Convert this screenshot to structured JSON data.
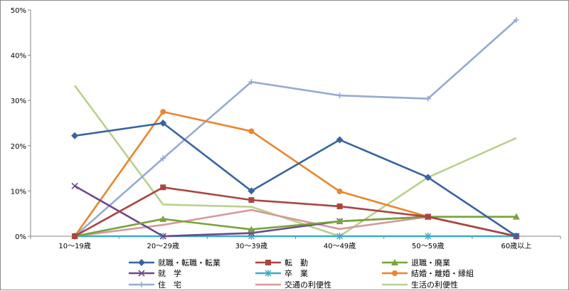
{
  "chart_data": {
    "type": "line",
    "categories": [
      "10～19歳",
      "20～29歳",
      "30～39歳",
      "40～49歳",
      "50～59歳",
      "60歳以上"
    ],
    "ylim": [
      0,
      50
    ],
    "yticks": [
      "0%",
      "10%",
      "20%",
      "30%",
      "40%",
      "50%"
    ],
    "grid": false,
    "legend_position": "bottom",
    "series": [
      {
        "name": "就職・転職・転業",
        "color": "#3a64a0",
        "marker": "diamond",
        "values": [
          22.2,
          25.0,
          10.0,
          21.3,
          13.0,
          0.0
        ]
      },
      {
        "name": "転　勤",
        "color": "#a84643",
        "marker": "square",
        "values": [
          0.0,
          10.8,
          8.0,
          6.6,
          4.3,
          0.0
        ]
      },
      {
        "name": "退職・廃業",
        "color": "#79a33b",
        "marker": "triangle",
        "values": [
          0.0,
          3.8,
          1.5,
          3.3,
          4.3,
          4.3
        ]
      },
      {
        "name": "就　学",
        "color": "#6b4a8a",
        "marker": "x",
        "values": [
          11.1,
          0.0,
          0.7,
          3.3,
          4.3,
          0.0
        ]
      },
      {
        "name": "卒　業",
        "color": "#3eaac7",
        "marker": "star",
        "values": [
          0.0,
          0.0,
          0.0,
          0.0,
          0.0,
          0.0
        ]
      },
      {
        "name": "結婚・離婚・縁組",
        "color": "#e8862f",
        "marker": "circle",
        "values": [
          0.0,
          27.5,
          23.2,
          9.9,
          4.3,
          0.0
        ]
      },
      {
        "name": "住　宅",
        "color": "#95abcf",
        "marker": "plus",
        "values": [
          0.0,
          17.2,
          34.1,
          31.1,
          30.4,
          47.8
        ]
      },
      {
        "name": "交通の利便性",
        "color": "#d59a99",
        "marker": "none",
        "values": [
          0.0,
          2.5,
          5.8,
          1.6,
          4.3,
          0.0
        ]
      },
      {
        "name": "生活の利便性",
        "color": "#b9d08e",
        "marker": "none",
        "values": [
          33.3,
          7.0,
          6.5,
          0.0,
          13.0,
          21.7
        ]
      }
    ]
  }
}
